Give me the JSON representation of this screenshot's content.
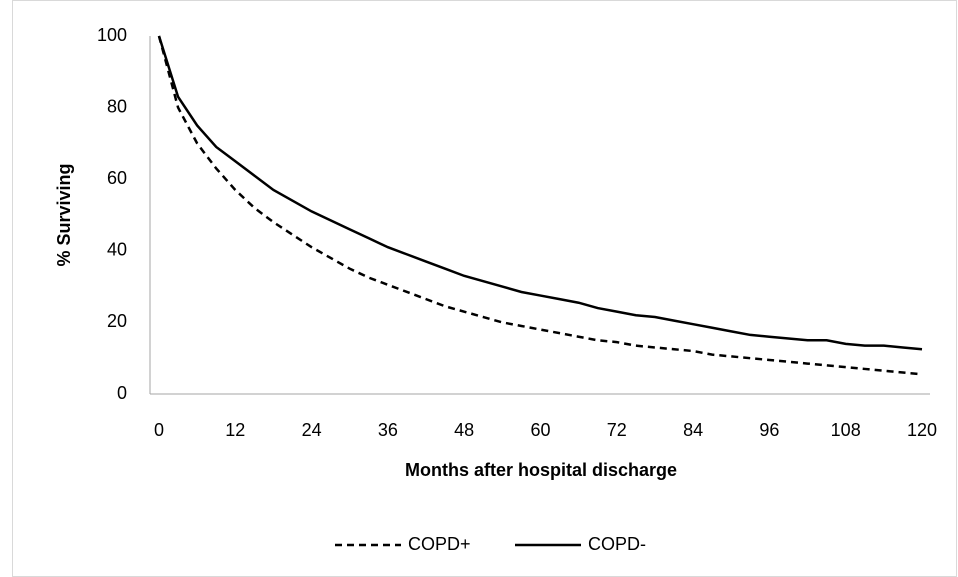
{
  "chart_data": {
    "type": "line",
    "x_label": "Months after hospital discharge",
    "y_label": "% Surviving",
    "x": [
      0,
      3,
      6,
      9,
      12,
      15,
      18,
      21,
      24,
      27,
      30,
      33,
      36,
      39,
      42,
      45,
      48,
      51,
      54,
      57,
      60,
      63,
      66,
      69,
      72,
      75,
      78,
      81,
      84,
      87,
      90,
      93,
      96,
      99,
      102,
      105,
      108,
      111,
      114,
      117,
      120
    ],
    "series": [
      {
        "name": "COPD+",
        "color": "#000000",
        "line_style": "dashed",
        "values": [
          100,
          80,
          70,
          63,
          57,
          52,
          48,
          44.5,
          41,
          38,
          35,
          32.5,
          30.5,
          28.5,
          26.5,
          24.5,
          23,
          21.5,
          20,
          19,
          18,
          17,
          16,
          15,
          14.5,
          13.5,
          13,
          12.5,
          12,
          11,
          10.5,
          10,
          9.5,
          9,
          8.5,
          8,
          7.5,
          7,
          6.5,
          6,
          5.5
        ]
      },
      {
        "name": "COPD-",
        "color": "#000000",
        "line_style": "solid",
        "values": [
          100,
          83,
          75,
          69,
          65,
          61,
          57,
          54,
          51,
          48.5,
          46,
          43.5,
          41,
          39,
          37,
          35,
          33,
          31.5,
          30,
          28.5,
          27.5,
          26.5,
          25.5,
          24,
          23,
          22,
          21.5,
          20.5,
          19.5,
          18.5,
          17.5,
          16.5,
          16,
          15.5,
          15,
          15,
          14,
          13.5,
          13.5,
          13,
          12.5
        ]
      }
    ],
    "xlim": [
      0,
      120
    ],
    "xticks": [
      0,
      12,
      24,
      36,
      48,
      60,
      72,
      84,
      96,
      108,
      120
    ],
    "ylim": [
      0,
      100
    ],
    "yticks": [
      0,
      20,
      40,
      60,
      80,
      100
    ],
    "grid": false,
    "legend_position": "bottom"
  }
}
